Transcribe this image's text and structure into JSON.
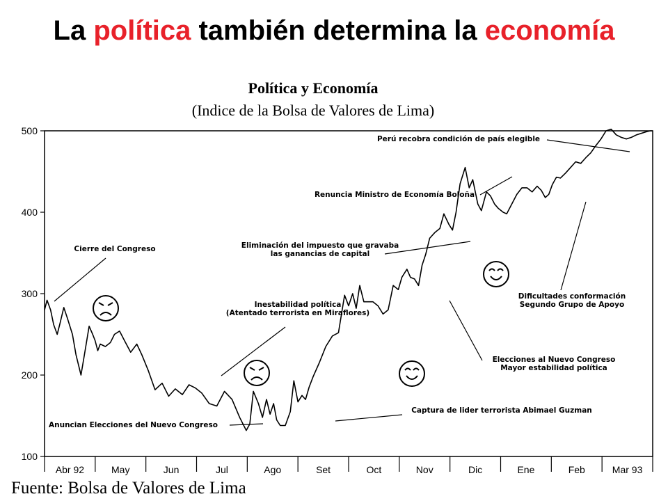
{
  "slide_title": {
    "part1": "La ",
    "part2": "política",
    "part3": " también determina la ",
    "part4": "economía",
    "accent_color": "#e8212a"
  },
  "source": "Fuente: Bolsa de Valores de Lima",
  "chart_data": {
    "type": "line",
    "title": "Política y Economía",
    "subtitle": "(Indice de la Bolsa de Valores de Lima)",
    "xlabel": "",
    "ylabel": "",
    "ylim": [
      100,
      500
    ],
    "xlim": [
      0,
      12
    ],
    "grid": false,
    "yticks": [
      100,
      200,
      300,
      400,
      500
    ],
    "categories": [
      "Abr 92",
      "May",
      "Jun",
      "Jul",
      "Ago",
      "Set",
      "Oct",
      "Nov",
      "Dic",
      "Ene",
      "Feb",
      "Mar 93"
    ],
    "series": [
      {
        "color": "#000000",
        "x": [
          0,
          0.05,
          0.12,
          0.18,
          0.25,
          0.3,
          0.38,
          0.45,
          0.55,
          0.62,
          0.72,
          0.8,
          0.88,
          0.95,
          1.0,
          1.05,
          1.1,
          1.2,
          1.3,
          1.38,
          1.48,
          1.58,
          1.7,
          1.82,
          1.92,
          2.05,
          2.18,
          2.32,
          2.45,
          2.58,
          2.72,
          2.85,
          2.98,
          3.1,
          3.25,
          3.4,
          3.55,
          3.7,
          3.85,
          3.98,
          4.05,
          4.12,
          4.22,
          4.3,
          4.38,
          4.45,
          4.52,
          4.58,
          4.65,
          4.75,
          4.85,
          4.92,
          5.0,
          5.08,
          5.15,
          5.22,
          5.3,
          5.42,
          5.55,
          5.68,
          5.8,
          5.92,
          6.0,
          6.08,
          6.15,
          6.22,
          6.3,
          6.38,
          6.48,
          6.58,
          6.68,
          6.78,
          6.88,
          6.98,
          7.05,
          7.15,
          7.22,
          7.3,
          7.38,
          7.45,
          7.52,
          7.6,
          7.7,
          7.8,
          7.88,
          7.98,
          8.05,
          8.12,
          8.2,
          8.3,
          8.38,
          8.45,
          8.55,
          8.62,
          8.72,
          8.8,
          8.88,
          8.95,
          9.05,
          9.12,
          9.22,
          9.32,
          9.42,
          9.52,
          9.62,
          9.72,
          9.8,
          9.88,
          9.95,
          10.02,
          10.1,
          10.18,
          10.28,
          10.38,
          10.48,
          10.58,
          10.68,
          10.78,
          10.88,
          10.98,
          11.08,
          11.18,
          11.28,
          11.38,
          11.48,
          11.58,
          11.68,
          11.78,
          11.88,
          11.95,
          12.0
        ],
        "values": [
          280,
          292,
          280,
          262,
          250,
          262,
          283,
          270,
          250,
          225,
          200,
          230,
          260,
          250,
          242,
          230,
          238,
          235,
          240,
          250,
          254,
          242,
          228,
          238,
          225,
          205,
          182,
          190,
          174,
          183,
          176,
          188,
          184,
          178,
          165,
          162,
          180,
          170,
          148,
          132,
          140,
          180,
          165,
          148,
          170,
          152,
          165,
          145,
          138,
          138,
          155,
          193,
          167,
          175,
          170,
          185,
          198,
          215,
          235,
          248,
          252,
          298,
          285,
          300,
          282,
          310,
          290,
          290,
          290,
          285,
          275,
          280,
          310,
          305,
          320,
          330,
          320,
          318,
          310,
          335,
          348,
          368,
          375,
          380,
          398,
          385,
          378,
          400,
          435,
          455,
          430,
          440,
          410,
          402,
          425,
          420,
          410,
          405,
          400,
          398,
          410,
          422,
          430,
          430,
          425,
          432,
          427,
          418,
          422,
          434,
          443,
          442,
          448,
          455,
          462,
          460,
          467,
          473,
          482,
          490,
          500,
          502,
          495,
          492,
          490,
          492,
          495,
          497,
          499,
          500,
          500
        ]
      }
    ],
    "annotations": [
      {
        "lines": [
          "Cierre del Congreso"
        ]
      },
      {
        "lines": [
          "Anuncian Elecciones del Nuevo Congreso"
        ]
      },
      {
        "lines": [
          "Inestabilidad política",
          "(Atentado terrorista en Miraflores)"
        ]
      },
      {
        "lines": [
          "Eliminación del impuesto que gravaba",
          "las ganancias de capital"
        ]
      },
      {
        "lines": [
          "Renuncia Ministro de Economía Boloña"
        ]
      },
      {
        "lines": [
          "Perú recobra condición de país elegible"
        ]
      },
      {
        "lines": [
          "Captura de lider terrorista Abimael Guzman"
        ]
      },
      {
        "lines": [
          "Elecciones al Nuevo Congreso",
          "Mayor estabilidad política"
        ]
      },
      {
        "lines": [
          "Dificultades conformación",
          "Segundo Grupo de Apoyo"
        ]
      }
    ],
    "faces": [
      "frown-face",
      "frown-face",
      "smile-face",
      "smile-face"
    ]
  }
}
